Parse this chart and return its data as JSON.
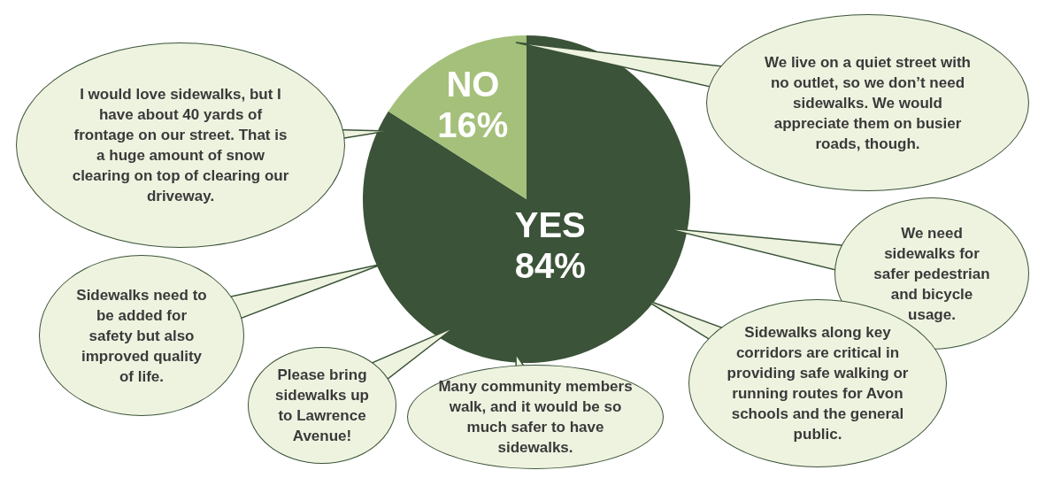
{
  "chart_data": {
    "type": "pie",
    "categories": [
      "YES",
      "NO"
    ],
    "values": [
      84,
      16
    ],
    "value_labels": [
      "84%",
      "16%"
    ],
    "colors": [
      "#3b5338",
      "#a4c07a"
    ],
    "annotations": [
      "I would love sidewalks, but I have about 40 yards of frontage on our street. That is a huge amount of snow clearing on top of clearing our driveway.",
      "We live on a quiet street with no outlet, so we don’t need sidewalks. We would appreciate them on busier roads, though.",
      "We need sidewalks for safer pedestrian and bicycle usage.",
      "Sidewalks need to be added for safety but also improved quality of life.",
      "Please bring sidewalks up to Lawrence Avenue!",
      "Many community members walk, and it would be so much safer to have sidewalks.",
      "Sidewalks along key corridors are critical in providing safe walking or running routes for Avon schools and the general public."
    ]
  }
}
